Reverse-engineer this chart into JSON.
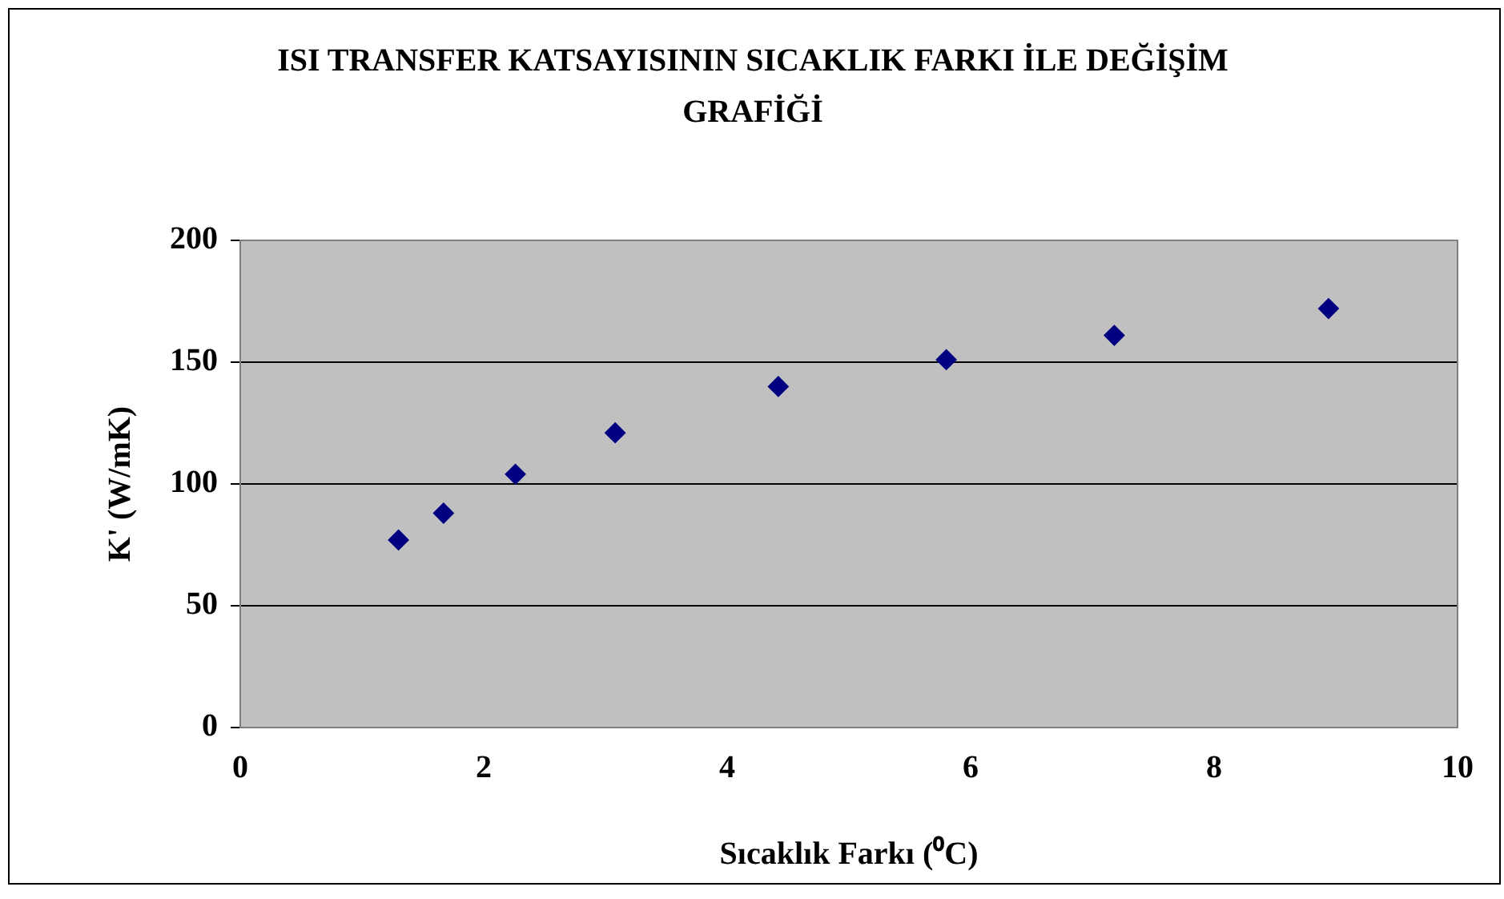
{
  "chart_data": {
    "type": "scatter",
    "title": "ISI TRANSFER KATSAYISININ SICAKLIK FARKI İLE DEĞİŞİM GRAFİĞİ",
    "xlabel": "Sıcaklık Farkı (⁰C)",
    "ylabel": "K' (W/mK)",
    "x": [
      1.3,
      1.67,
      2.26,
      3.08,
      4.42,
      5.8,
      7.18,
      8.94
    ],
    "series": [
      {
        "color": "#000080",
        "values": [
          77,
          88,
          104,
          121,
          140,
          151,
          161,
          172
        ]
      }
    ],
    "xlim": [
      0,
      10
    ],
    "xticks": [
      0,
      2,
      4,
      6,
      8,
      10
    ],
    "ylim": [
      0,
      200
    ],
    "yticks": [
      0,
      50,
      100,
      150,
      200
    ],
    "grid": "y",
    "legend": false,
    "marker": "diamond"
  }
}
